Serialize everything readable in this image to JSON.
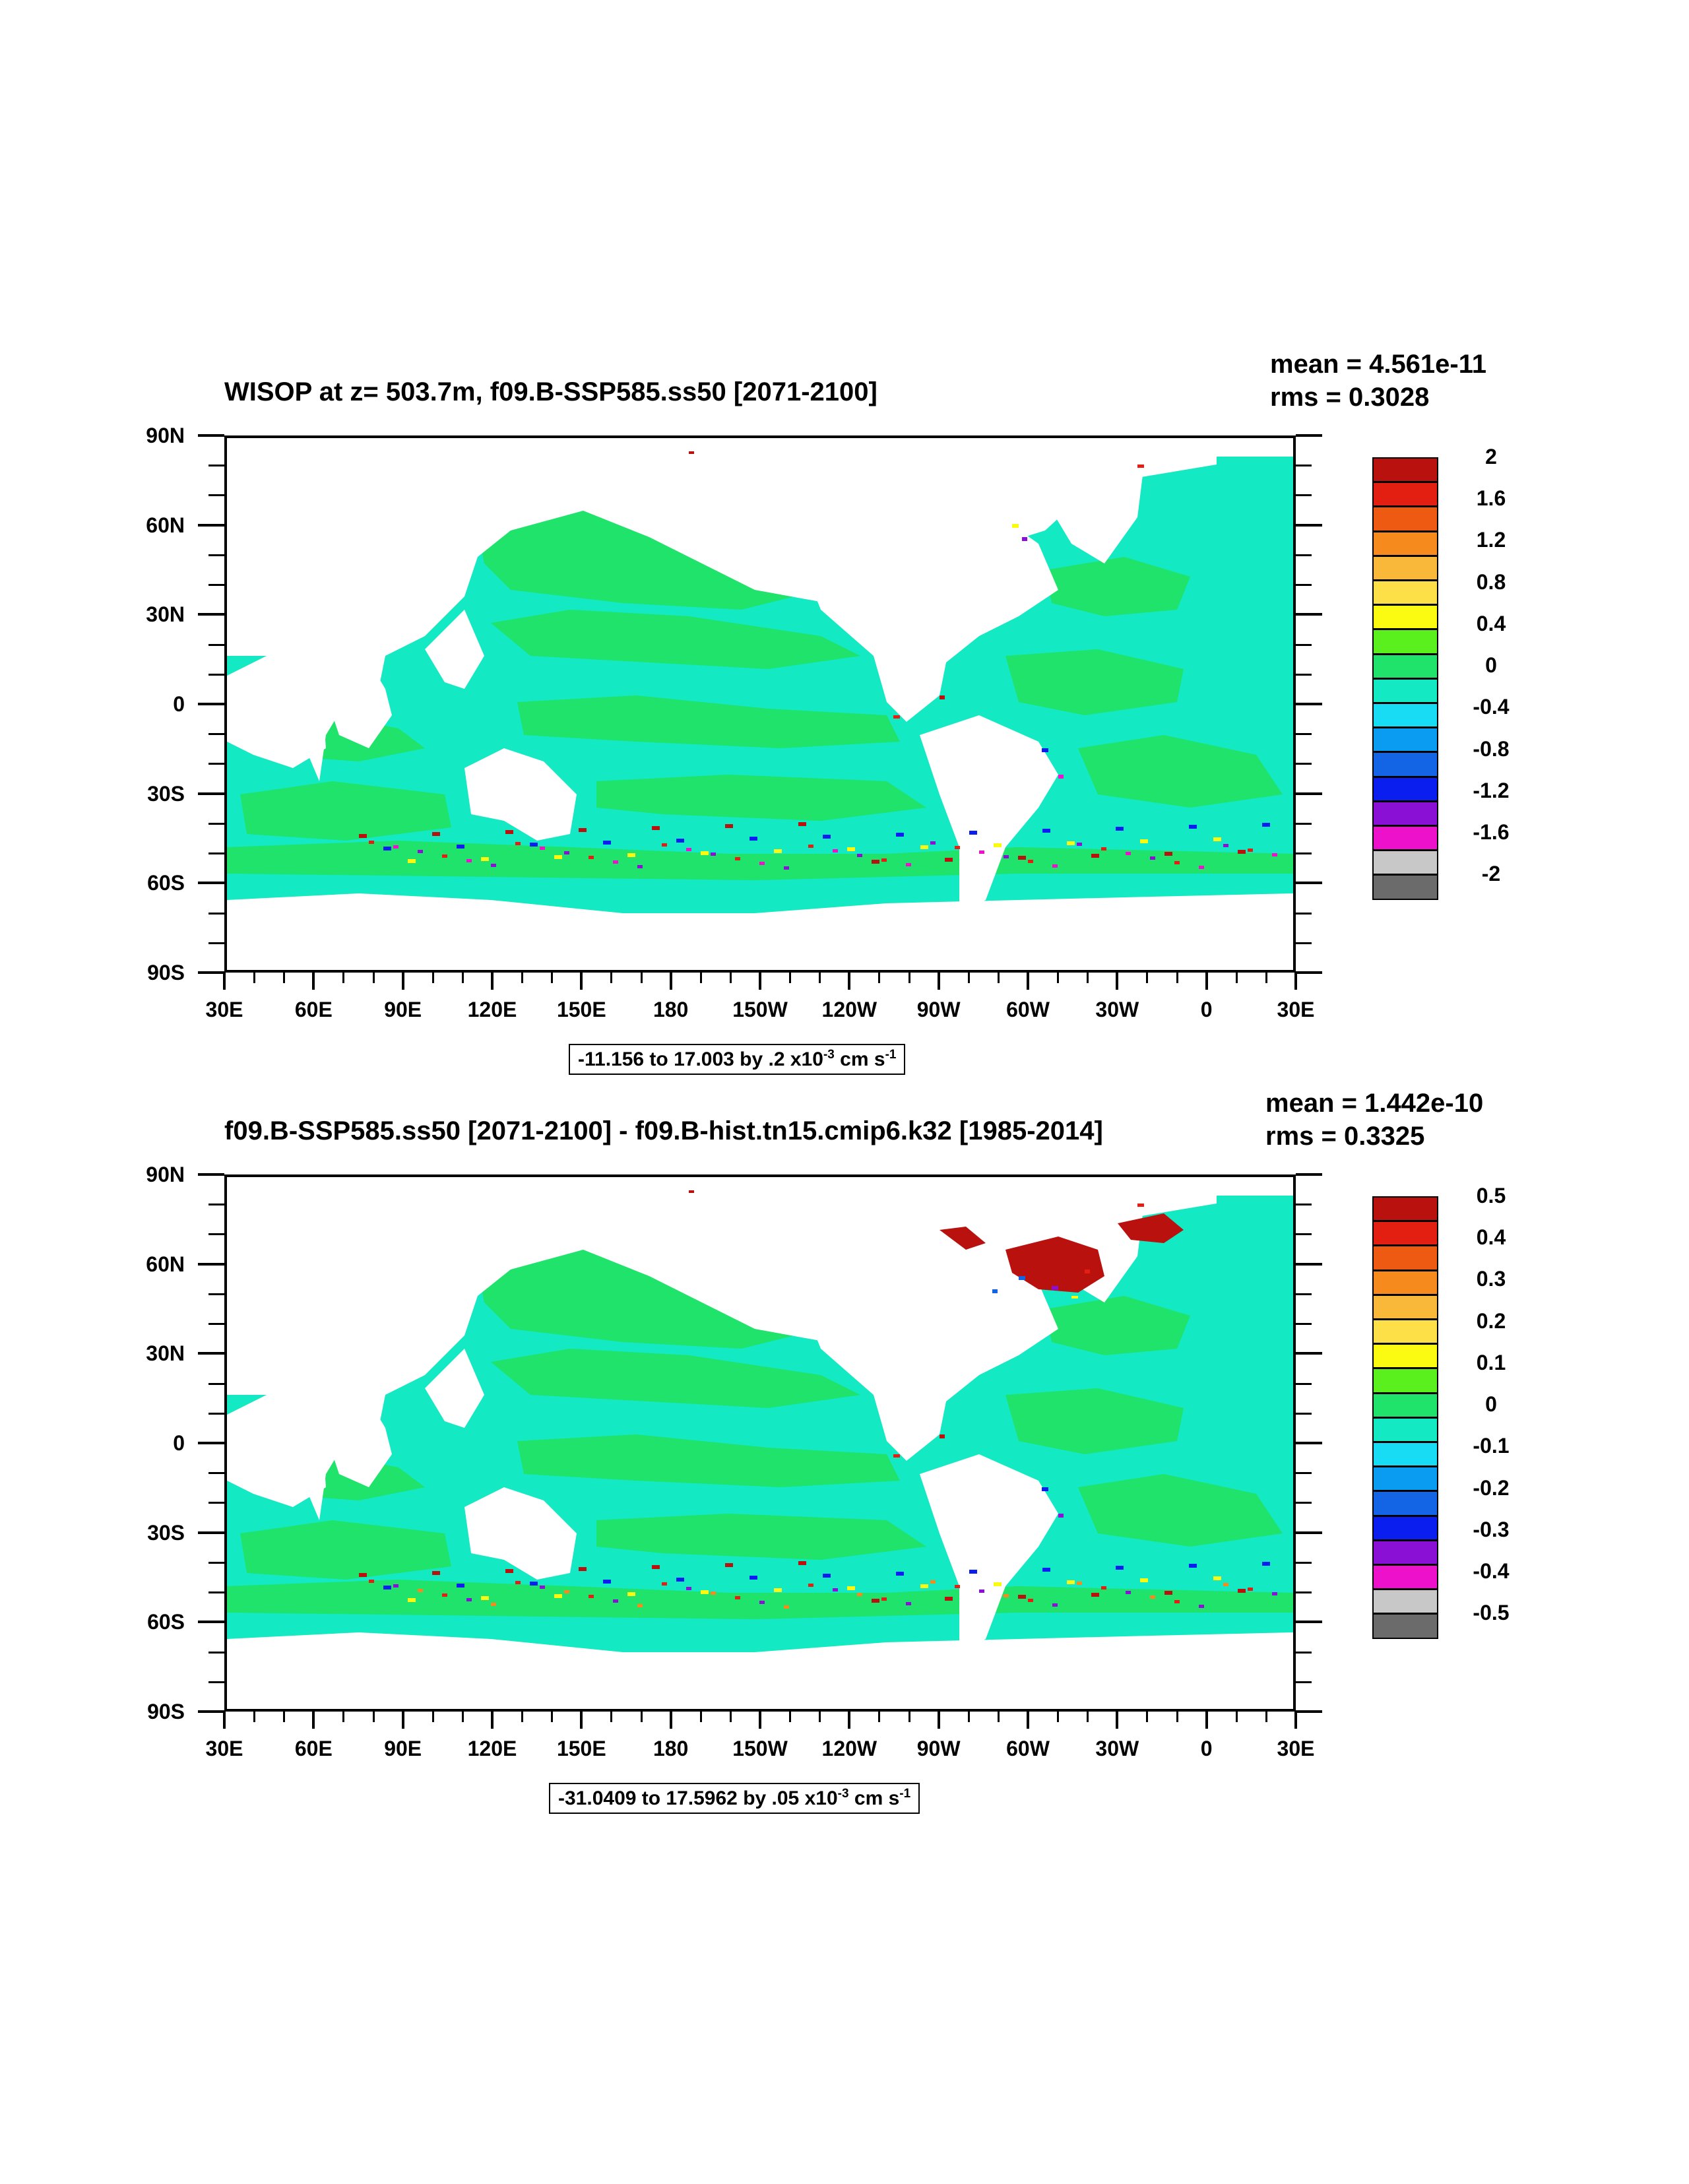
{
  "colors": {
    "ocean_pos_small": "#1fe36a",
    "ocean_neg_small": "#13e9c3",
    "land": "#ffffff",
    "scale": [
      "#6b6b6b",
      "#c8c8c8",
      "#ee11cc",
      "#8a10d6",
      "#0a1ef0",
      "#1464e6",
      "#0a9cf0",
      "#17dcf4",
      "#13e9c3",
      "#1fe36a",
      "#5af01e",
      "#fbfb12",
      "#fde047",
      "#f9b83a",
      "#f68a1c",
      "#ef5a12",
      "#e21f10",
      "#b9110d"
    ]
  },
  "longitude_ticks": [
    "30E",
    "60E",
    "90E",
    "120E",
    "150E",
    "180",
    "150W",
    "120W",
    "90W",
    "60W",
    "30W",
    "0",
    "30E"
  ],
  "latitude_ticks": [
    "90N",
    "60N",
    "30N",
    "0",
    "30S",
    "60S",
    "90S"
  ],
  "panels": [
    {
      "title": "WISOP at z= 503.7m, f09.B-SSP585.ss50 [2071-2100]",
      "mean": "mean = 4.561e-11",
      "rms": "rms = 0.3028",
      "info_main": "-11.156 to 17.003 by .2 x10",
      "info_exp": "-3",
      "info_unit": " cm s",
      "info_unit_exp": "-1",
      "colorbar_labels": [
        "2",
        "1.6",
        "1.2",
        "0.8",
        "0.4",
        "0",
        "-0.4",
        "-0.8",
        "-1.2",
        "-1.6",
        "-2"
      ]
    },
    {
      "title": "f09.B-SSP585.ss50 [2071-2100] - f09.B-hist.tn15.cmip6.k32 [1985-2014]",
      "mean": "mean = 1.442e-10",
      "rms": "rms = 0.3325",
      "info_main": "-31.0409 to 17.5962 by .05 x10",
      "info_exp": "-3",
      "info_unit": " cm s",
      "info_unit_exp": "-1",
      "colorbar_labels": [
        "0.5",
        "0.4",
        "0.3",
        "0.2",
        "0.1",
        "0",
        "-0.1",
        "-0.2",
        "-0.3",
        "-0.4",
        "-0.5"
      ]
    }
  ]
}
